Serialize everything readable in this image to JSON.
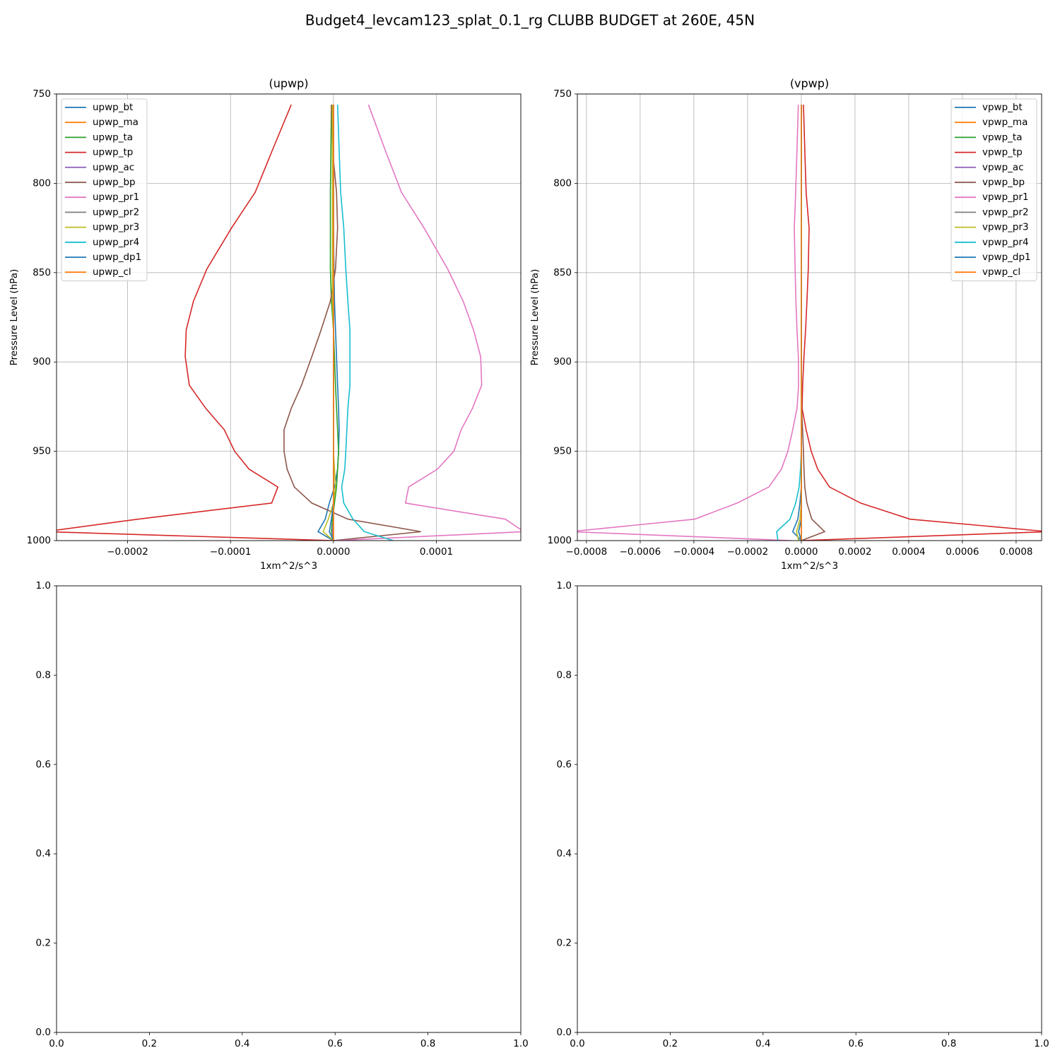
{
  "title": "Budget4_levcam123_splat_0.1_rg CLUBB BUDGET at 260E, 45N",
  "chart_data": [
    {
      "type": "line",
      "title": "(upwp)",
      "x_label": "1xm^2/s^3",
      "y_label": "Pressure Level (hPa)",
      "grid": true,
      "legend": "upper left",
      "y": [
        756,
        781,
        805,
        825,
        848,
        866,
        882,
        897,
        913,
        926,
        938,
        950,
        960,
        970,
        979,
        988,
        995,
        1000
      ],
      "xlim": [
        -0.000269,
        0.000182
      ],
      "ylim": [
        1000,
        750
      ],
      "xticks": [
        {
          "value": -0.0002,
          "label": "−0.0002"
        },
        {
          "value": -0.0001,
          "label": "−0.0001"
        },
        {
          "value": 0,
          "label": "0.0000"
        },
        {
          "value": 0.0001,
          "label": "0.0001"
        }
      ],
      "yticks": [
        750,
        800,
        850,
        900,
        950,
        1000
      ],
      "series": [
        {
          "name": "upwp_bt",
          "color": "#1f77b4",
          "values": [
            -1.5e-06,
            -1e-06,
            -5e-07,
            0,
            5e-07,
            1e-06,
            2e-06,
            3e-06,
            4e-06,
            5e-06,
            5.5e-06,
            5e-06,
            4e-06,
            1e-06,
            -4e-06,
            -8e-06,
            -1.5e-05,
            0
          ]
        },
        {
          "name": "upwp_ma",
          "color": "#ff7f0e",
          "values": [
            0,
            0,
            0,
            0,
            0,
            0,
            0,
            0,
            0,
            0,
            0,
            0,
            0,
            0,
            0,
            0,
            0,
            0
          ]
        },
        {
          "name": "upwp_ta",
          "color": "#2ca02c",
          "values": [
            -2e-06,
            -2.5e-06,
            -3e-06,
            -3e-06,
            -3e-06,
            -2e-06,
            0,
            1e-06,
            2e-06,
            3e-06,
            4e-06,
            5e-06,
            4e-06,
            3e-06,
            1e-06,
            -1e-06,
            -2e-06,
            0
          ]
        },
        {
          "name": "upwp_tp",
          "color": "#d62728",
          "values": [
            -4.1e-05,
            -5.9e-05,
            -7.6e-05,
            -9.9e-05,
            -0.000123,
            -0.000136,
            -0.000143,
            -0.000144,
            -0.00014,
            -0.000124,
            -0.000106,
            -9.6e-05,
            -8.2e-05,
            -5.4e-05,
            -6e-05,
            -0.00019,
            -0.00028,
            0
          ]
        },
        {
          "name": "upwp_ac",
          "color": "#9467bd",
          "values": [
            0,
            0,
            0,
            0,
            0,
            0,
            0,
            0,
            0,
            0,
            0,
            0,
            0,
            0,
            0,
            0,
            -1e-06,
            0
          ]
        },
        {
          "name": "upwp_bp",
          "color": "#8c564b",
          "values": [
            -2e-06,
            -1e-06,
            3e-06,
            4e-06,
            2e-06,
            -3e-06,
            -1.2e-05,
            -2.1e-05,
            -3.1e-05,
            -4.1e-05,
            -4.8e-05,
            -4.8e-05,
            -4.5e-05,
            -3.8e-05,
            -2.1e-05,
            1.4e-05,
            8.5e-05,
            0
          ]
        },
        {
          "name": "upwp_pr1",
          "color": "#e377c2",
          "values": [
            3.4e-05,
            5e-05,
            6.6e-05,
            8.8e-05,
            0.000111,
            0.000126,
            0.000136,
            0.000143,
            0.000144,
            0.000135,
            0.000124,
            0.000117,
            0.000101,
            7.3e-05,
            7e-05,
            0.000167,
            0.000185,
            2e-06
          ]
        },
        {
          "name": "upwp_pr2",
          "color": "#7f7f7f",
          "values": [
            0,
            0,
            0,
            0,
            0,
            0,
            0,
            0,
            0,
            0,
            0,
            0,
            0,
            0,
            0,
            0,
            0,
            0
          ]
        },
        {
          "name": "upwp_pr3",
          "color": "#bcbd22",
          "values": [
            -1e-06,
            -1e-06,
            -1e-06,
            -1e-06,
            -1e-06,
            -1e-06,
            0,
            0,
            0,
            0,
            0,
            0,
            1e-06,
            2e-06,
            0,
            -5e-06,
            -1e-05,
            0
          ]
        },
        {
          "name": "upwp_pr4",
          "color": "#17becf",
          "values": [
            4e-06,
            5.5e-06,
            7e-06,
            1e-05,
            1.2e-05,
            1.4e-05,
            1.6e-05,
            1.6e-05,
            1.6e-05,
            1.4e-05,
            1.3e-05,
            1.2e-05,
            1.1e-05,
            8e-06,
            1e-05,
            1.9e-05,
            3e-05,
            5.8e-05
          ]
        },
        {
          "name": "upwp_dp1",
          "color": "#1f77b4",
          "values": [
            0,
            0,
            0,
            0,
            0,
            0,
            0,
            0,
            0,
            0,
            0,
            0,
            0,
            0,
            0,
            -2e-06,
            -4e-06,
            0
          ]
        },
        {
          "name": "upwp_cl",
          "color": "#ff7f0e",
          "values": [
            0,
            0,
            0,
            0,
            0,
            0,
            0,
            0,
            0,
            0,
            0,
            0,
            0,
            0,
            0,
            0,
            0,
            0
          ]
        }
      ]
    },
    {
      "type": "line",
      "title": "(vpwp)",
      "x_label": "1xm^2/s^3",
      "y_label": "Pressure Level (hPa)",
      "grid": true,
      "legend": "upper right",
      "y": [
        756,
        781,
        805,
        825,
        848,
        866,
        882,
        897,
        913,
        926,
        938,
        950,
        960,
        970,
        979,
        988,
        995,
        1000
      ],
      "xlim": [
        -0.000834,
        0.000895
      ],
      "ylim": [
        1000,
        750
      ],
      "xticks": [
        {
          "value": -0.0008,
          "label": "−0.0008"
        },
        {
          "value": -0.0006,
          "label": "−0.0006"
        },
        {
          "value": -0.0004,
          "label": "−0.0004"
        },
        {
          "value": -0.0002,
          "label": "−0.0002"
        },
        {
          "value": 0,
          "label": "0.0000"
        },
        {
          "value": 0.0002,
          "label": "0.0002"
        },
        {
          "value": 0.0004,
          "label": "0.0004"
        },
        {
          "value": 0.0006,
          "label": "0.0006"
        },
        {
          "value": 0.0008,
          "label": "0.0008"
        }
      ],
      "yticks": [
        750,
        800,
        850,
        900,
        950,
        1000
      ],
      "series": [
        {
          "name": "vpwp_bt",
          "color": "#1f77b4",
          "values": [
            0,
            0,
            0,
            0,
            0,
            0,
            0,
            0,
            0,
            0,
            0,
            0,
            0,
            0,
            -5e-06,
            -1.3e-05,
            -3.2e-05,
            0
          ]
        },
        {
          "name": "vpwp_ma",
          "color": "#ff7f0e",
          "values": [
            0,
            0,
            0,
            0,
            0,
            0,
            0,
            0,
            0,
            0,
            0,
            0,
            0,
            0,
            0,
            0,
            0,
            0
          ]
        },
        {
          "name": "vpwp_ta",
          "color": "#2ca02c",
          "values": [
            0,
            0,
            0,
            0,
            0,
            0,
            0,
            0,
            0,
            0,
            0,
            0,
            0,
            0,
            0,
            0,
            -1e-05,
            0
          ]
        },
        {
          "name": "vpwp_tp",
          "color": "#d62728",
          "values": [
            8e-06,
            1.3e-05,
            1.8e-05,
            2.9e-05,
            2.6e-05,
            2.1e-05,
            1.6e-05,
            1e-05,
            5e-06,
            3e-06,
            1.8e-05,
            3.7e-05,
            6.1e-05,
            0.000105,
            0.000221,
            0.000405,
            0.00092,
            0
          ]
        },
        {
          "name": "vpwp_ac",
          "color": "#9467bd",
          "values": [
            0,
            0,
            0,
            0,
            0,
            0,
            0,
            0,
            0,
            0,
            0,
            0,
            0,
            0,
            0,
            0,
            0,
            0
          ]
        },
        {
          "name": "vpwp_bp",
          "color": "#8c564b",
          "values": [
            0,
            0,
            0,
            0,
            0,
            0,
            0,
            0,
            0,
            1e-06,
            5e-06,
            8e-06,
            1e-05,
            1.3e-05,
            2.1e-05,
            3.9e-05,
            8.7e-05,
            0
          ]
        },
        {
          "name": "vpwp_pr1",
          "color": "#e377c2",
          "values": [
            -1.1e-05,
            -1.6e-05,
            -2.1e-05,
            -2.6e-05,
            -2.3e-05,
            -2e-05,
            -1.6e-05,
            -1.1e-05,
            -1e-05,
            -1.6e-05,
            -3.2e-05,
            -5e-05,
            -7.4e-05,
            -0.000121,
            -0.000239,
            -0.000397,
            -0.00086,
            -3.7e-05
          ]
        },
        {
          "name": "vpwp_pr2",
          "color": "#7f7f7f",
          "values": [
            0,
            0,
            0,
            0,
            0,
            0,
            0,
            0,
            0,
            0,
            0,
            0,
            0,
            0,
            0,
            0,
            0,
            0
          ]
        },
        {
          "name": "vpwp_pr3",
          "color": "#bcbd22",
          "values": [
            0,
            0,
            0,
            0,
            0,
            0,
            0,
            0,
            0,
            0,
            0,
            0,
            0,
            0,
            0,
            -5e-06,
            -1.8e-05,
            -1e-05
          ]
        },
        {
          "name": "vpwp_pr4",
          "color": "#17becf",
          "values": [
            0,
            0,
            0,
            0,
            0,
            0,
            0,
            0,
            0,
            0,
            0,
            0,
            -3e-06,
            -8e-06,
            -2.1e-05,
            -4.2e-05,
            -9.2e-05,
            -8.7e-05
          ]
        },
        {
          "name": "vpwp_dp1",
          "color": "#1f77b4",
          "values": [
            0,
            0,
            0,
            0,
            0,
            0,
            0,
            0,
            0,
            0,
            0,
            0,
            0,
            0,
            0,
            0,
            -1e-05,
            0
          ]
        },
        {
          "name": "vpwp_cl",
          "color": "#ff7f0e",
          "values": [
            0,
            0,
            0,
            0,
            0,
            0,
            0,
            0,
            0,
            0,
            0,
            0,
            0,
            0,
            0,
            0,
            0,
            0
          ]
        }
      ]
    },
    {
      "type": "line",
      "grid": false,
      "series": [],
      "xlim": [
        0,
        1
      ],
      "ylim": [
        0,
        1
      ],
      "xticks": [
        {
          "value": 0,
          "label": "0.0"
        },
        {
          "value": 0.2,
          "label": "0.2"
        },
        {
          "value": 0.4,
          "label": "0.4"
        },
        {
          "value": 0.6,
          "label": "0.6"
        },
        {
          "value": 0.8,
          "label": "0.8"
        },
        {
          "value": 1,
          "label": "1.0"
        }
      ],
      "yticks": [
        {
          "value": 0,
          "label": "0.0"
        },
        {
          "value": 0.2,
          "label": "0.2"
        },
        {
          "value": 0.4,
          "label": "0.4"
        },
        {
          "value": 0.6,
          "label": "0.6"
        },
        {
          "value": 0.8,
          "label": "0.8"
        },
        {
          "value": 1,
          "label": "1.0"
        }
      ]
    },
    {
      "type": "line",
      "grid": false,
      "series": [],
      "xlim": [
        0,
        1
      ],
      "ylim": [
        0,
        1
      ],
      "xticks": [
        {
          "value": 0,
          "label": "0.0"
        },
        {
          "value": 0.2,
          "label": "0.2"
        },
        {
          "value": 0.4,
          "label": "0.4"
        },
        {
          "value": 0.6,
          "label": "0.6"
        },
        {
          "value": 0.8,
          "label": "0.8"
        },
        {
          "value": 1,
          "label": "1.0"
        }
      ],
      "yticks": [
        {
          "value": 0,
          "label": "0.0"
        },
        {
          "value": 0.2,
          "label": "0.2"
        },
        {
          "value": 0.4,
          "label": "0.4"
        },
        {
          "value": 0.6,
          "label": "0.6"
        },
        {
          "value": 0.8,
          "label": "0.8"
        },
        {
          "value": 1,
          "label": "1.0"
        }
      ]
    }
  ]
}
